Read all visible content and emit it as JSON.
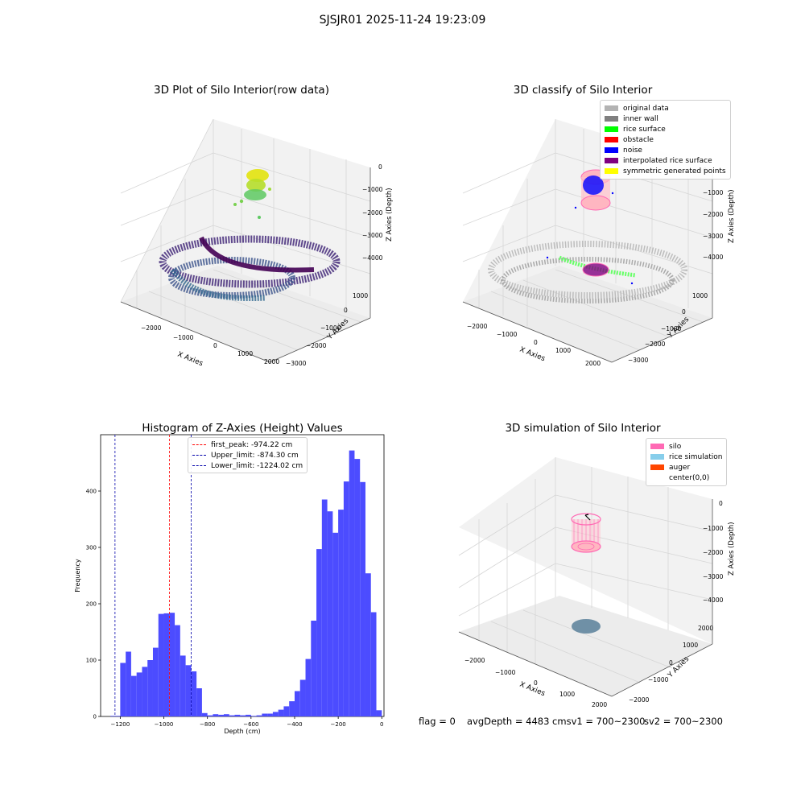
{
  "suptitle": "SJSJR01 2025-11-24 19:23:09",
  "colors": {
    "hist_bar": "#4c4cff",
    "peak_line": "#ff0000",
    "limit_line": "#0000aa",
    "wall_gray": "#888888",
    "raw_low": "#440154",
    "raw_high": "#fde725"
  },
  "panels": {
    "raw": {
      "title": "3D Plot of Silo Interior(row data)",
      "x_label": "X Axies",
      "y_label": "Y Axies",
      "z_label": "Z Axies (Depth)",
      "x_ticks": [
        "−2000",
        "−1000",
        "0",
        "1000",
        "2000"
      ],
      "y_ticks": [
        "1000",
        "0",
        "−1000",
        "−2000",
        "−3000"
      ],
      "z_ticks": [
        "0",
        "−1000",
        "−2000",
        "−3000",
        "−4000"
      ]
    },
    "classify": {
      "title": "3D classify of Silo Interior",
      "x_label": "X Axies",
      "y_label": "Y Axies",
      "z_label": "Z Axies (Depth)",
      "x_ticks": [
        "−2000",
        "−1000",
        "0",
        "1000",
        "2000"
      ],
      "y_ticks": [
        "1000",
        "0",
        "−1000",
        "−2000",
        "−3000"
      ],
      "z_ticks": [
        "0",
        "−1000",
        "−2000",
        "−3000",
        "−4000"
      ],
      "legend": [
        {
          "label": "original data",
          "color": "#b3b3b3"
        },
        {
          "label": "inner wall",
          "color": "#808080"
        },
        {
          "label": "rice surface",
          "color": "#00ff00"
        },
        {
          "label": "obstacle",
          "color": "#ff0000"
        },
        {
          "label": "noise",
          "color": "#0000ff"
        },
        {
          "label": "interpolated rice surface",
          "color": "#800080"
        },
        {
          "label": "symmetric generated points",
          "color": "#ffff00"
        }
      ]
    },
    "simulation": {
      "title": "3D simulation of Silo Interior",
      "x_label": "X Axies",
      "y_label": "Y Axies",
      "z_label": "Z Axies (Depth)",
      "x_ticks": [
        "−2000",
        "−1000",
        "0",
        "1000",
        "2000"
      ],
      "y_ticks": [
        "2000",
        "1000",
        "0",
        "−1000",
        "−2000"
      ],
      "z_ticks": [
        "0",
        "−1000",
        "−2000",
        "−3000",
        "−4000"
      ],
      "legend": [
        {
          "label": "silo",
          "color": "#ff69b4"
        },
        {
          "label": "rice simulation",
          "color": "#87ceeb"
        },
        {
          "label": "auger",
          "color": "#ff4500"
        },
        {
          "label": "center(0,0)",
          "color": "#ffffff"
        }
      ]
    }
  },
  "status": {
    "flag": "flag = 0",
    "avg_depth": "avgDepth = 4483 cmsv1 = 700~2300",
    "sv2": "sv2 = 700~2300"
  },
  "chart_data": {
    "type": "bar",
    "title": "Histogram of Z-Axies (Height) Values",
    "xlabel": "Depth (cm)",
    "ylabel": "Frequency",
    "xlim": [
      -1290,
      10
    ],
    "ylim": [
      0,
      500
    ],
    "x_ticks": [
      -1200,
      -1000,
      -800,
      -600,
      -400,
      -200,
      0
    ],
    "y_ticks": [
      0,
      100,
      200,
      300,
      400
    ],
    "bin_width": 25,
    "bins": [
      {
        "x": -1245,
        "count": 1
      },
      {
        "x": -1220,
        "count": 1
      },
      {
        "x": -1200,
        "count": 95
      },
      {
        "x": -1175,
        "count": 115
      },
      {
        "x": -1150,
        "count": 72
      },
      {
        "x": -1125,
        "count": 78
      },
      {
        "x": -1100,
        "count": 88
      },
      {
        "x": -1075,
        "count": 100
      },
      {
        "x": -1050,
        "count": 122
      },
      {
        "x": -1025,
        "count": 182
      },
      {
        "x": -1000,
        "count": 183
      },
      {
        "x": -975,
        "count": 184
      },
      {
        "x": -950,
        "count": 162
      },
      {
        "x": -925,
        "count": 108
      },
      {
        "x": -900,
        "count": 91
      },
      {
        "x": -875,
        "count": 80
      },
      {
        "x": -850,
        "count": 50
      },
      {
        "x": -825,
        "count": 6
      },
      {
        "x": -800,
        "count": 2
      },
      {
        "x": -775,
        "count": 4
      },
      {
        "x": -750,
        "count": 3
      },
      {
        "x": -725,
        "count": 4
      },
      {
        "x": -700,
        "count": 2
      },
      {
        "x": -675,
        "count": 3
      },
      {
        "x": -650,
        "count": 2
      },
      {
        "x": -625,
        "count": 3
      },
      {
        "x": -600,
        "count": 1
      },
      {
        "x": -575,
        "count": 2
      },
      {
        "x": -550,
        "count": 5
      },
      {
        "x": -525,
        "count": 5
      },
      {
        "x": -500,
        "count": 8
      },
      {
        "x": -475,
        "count": 12
      },
      {
        "x": -450,
        "count": 18
      },
      {
        "x": -425,
        "count": 27
      },
      {
        "x": -400,
        "count": 45
      },
      {
        "x": -375,
        "count": 65
      },
      {
        "x": -350,
        "count": 102
      },
      {
        "x": -325,
        "count": 170
      },
      {
        "x": -300,
        "count": 297
      },
      {
        "x": -275,
        "count": 385
      },
      {
        "x": -250,
        "count": 364
      },
      {
        "x": -225,
        "count": 326
      },
      {
        "x": -200,
        "count": 367
      },
      {
        "x": -175,
        "count": 417
      },
      {
        "x": -150,
        "count": 472
      },
      {
        "x": -125,
        "count": 457
      },
      {
        "x": -100,
        "count": 416
      },
      {
        "x": -75,
        "count": 254
      },
      {
        "x": -50,
        "count": 185
      },
      {
        "x": -25,
        "count": 11
      }
    ],
    "vlines": [
      {
        "name": "first_peak: -974.22 cm",
        "x": -974.22,
        "color": "#ff0000"
      },
      {
        "name": "Upper_limit: -874.30 cm",
        "x": -874.3,
        "color": "#0000aa"
      },
      {
        "name": "Lower_limit: -1224.02 cm",
        "x": -1224.02,
        "color": "#0000aa"
      }
    ],
    "legend_position": "upper center"
  }
}
